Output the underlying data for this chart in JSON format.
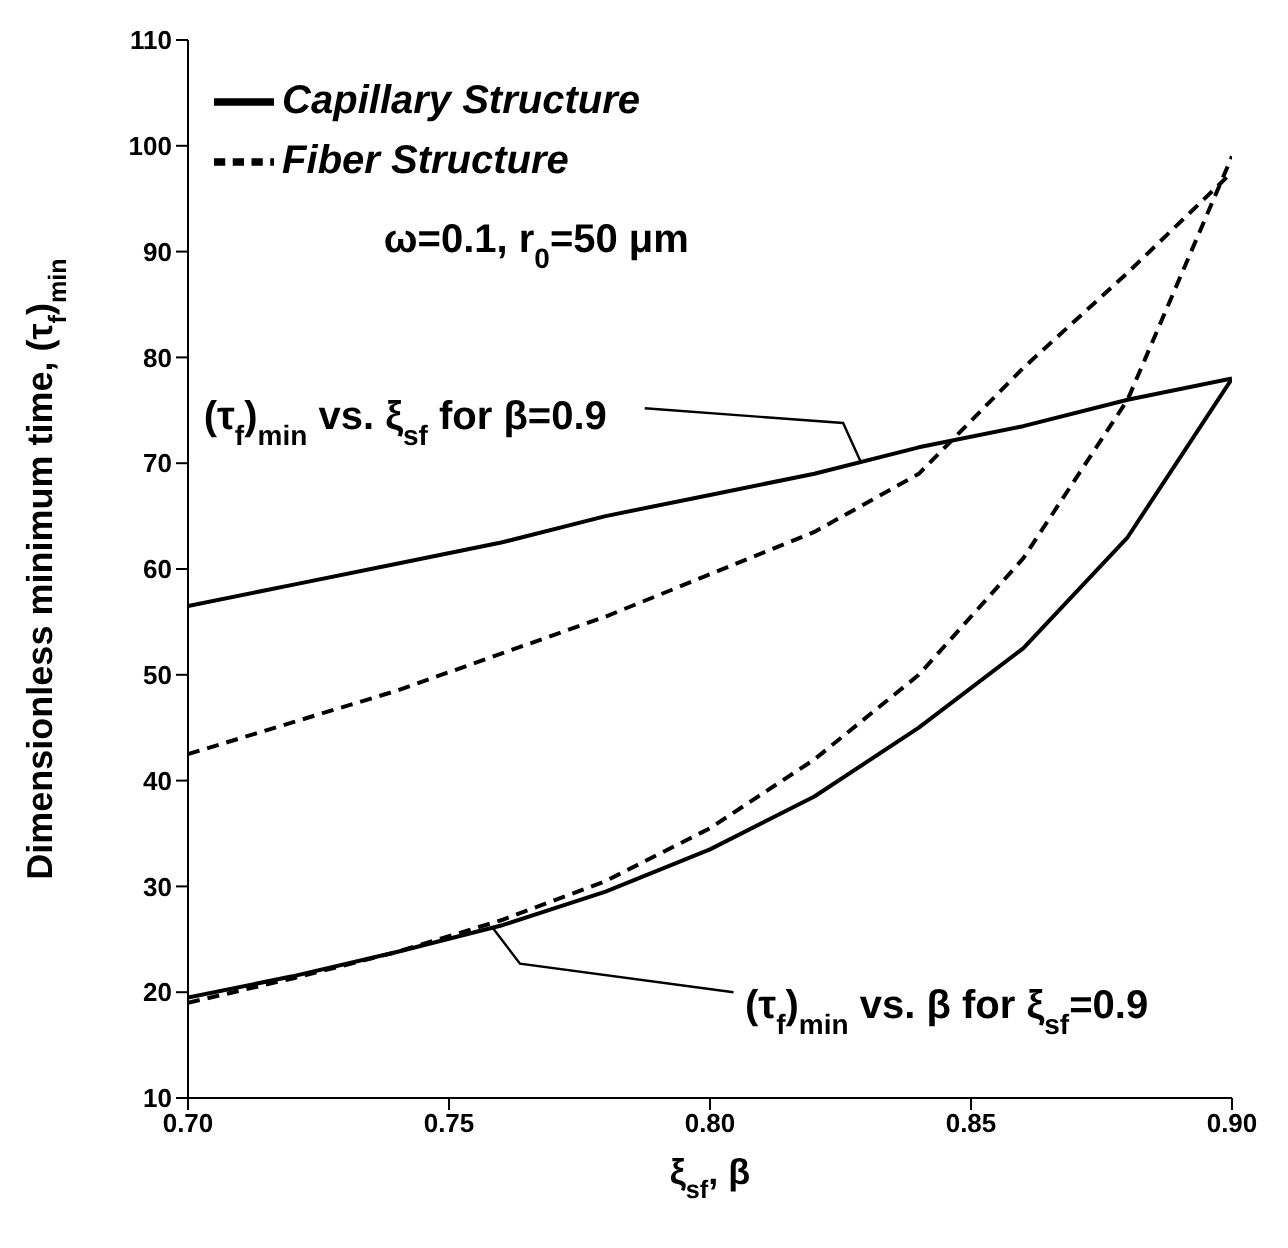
{
  "chart_data": {
    "type": "line",
    "xlabel": "ξ$_{sf}$, β",
    "ylabel": "Dimensionless minimum time, (τ$_{f}$)$_{min}$",
    "x": [
      0.7,
      0.72,
      0.74,
      0.76,
      0.78,
      0.8,
      0.82,
      0.84,
      0.86,
      0.88,
      0.9
    ],
    "series": [
      {
        "name": "Capillary Structure",
        "color": "#000000",
        "line_style": "solid",
        "values": [
          56.5,
          58.5,
          60.5,
          62.5,
          65,
          67,
          69,
          71.5,
          73.5,
          76,
          78
        ]
      },
      {
        "name": "Fiber Structure",
        "color": "#000000",
        "line_style": "dashed",
        "values": [
          42.5,
          45.5,
          48.5,
          52,
          55.5,
          59.5,
          63.5,
          69,
          79,
          88,
          97.5
        ]
      },
      {
        "color": "#000000",
        "line_style": "solid",
        "values": [
          19.5,
          21.5,
          23.8,
          26.3,
          29.5,
          33.5,
          38.5,
          45,
          52.5,
          63,
          78
        ]
      },
      {
        "color": "#000000",
        "line_style": "dashed",
        "values": [
          19,
          21.3,
          23.8,
          26.8,
          30.5,
          35.5,
          42,
          50,
          61,
          76,
          99
        ]
      }
    ],
    "annotations": [
      "ω=0.1, r$_{0}$=50 μm",
      {
        "text": "(τ$_{f}$)$_{min}$ vs. ξ$_{sf}$ for  β=0.9",
        "x": 0.829,
        "y": 70
      },
      {
        "text": "(τ$_{f}$)$_{min}$ vs. β for  ξ$_{sf}$=0.9",
        "x": 0.7585,
        "y": 26
      }
    ],
    "xlim": [
      0.7,
      0.9
    ],
    "xticks": [
      {
        "value": 0.7,
        "label": "0.70"
      },
      {
        "value": 0.75,
        "label": "0.75"
      },
      {
        "value": 0.8,
        "label": "0.80"
      },
      {
        "value": 0.85,
        "label": "0.85"
      },
      {
        "value": 0.9,
        "label": "0.90"
      }
    ],
    "ylim": [
      10,
      110
    ],
    "yticks": [
      10,
      20,
      30,
      40,
      50,
      60,
      70,
      80,
      90,
      100,
      110
    ],
    "grid": false,
    "legend": "top left",
    "marker": "none"
  }
}
